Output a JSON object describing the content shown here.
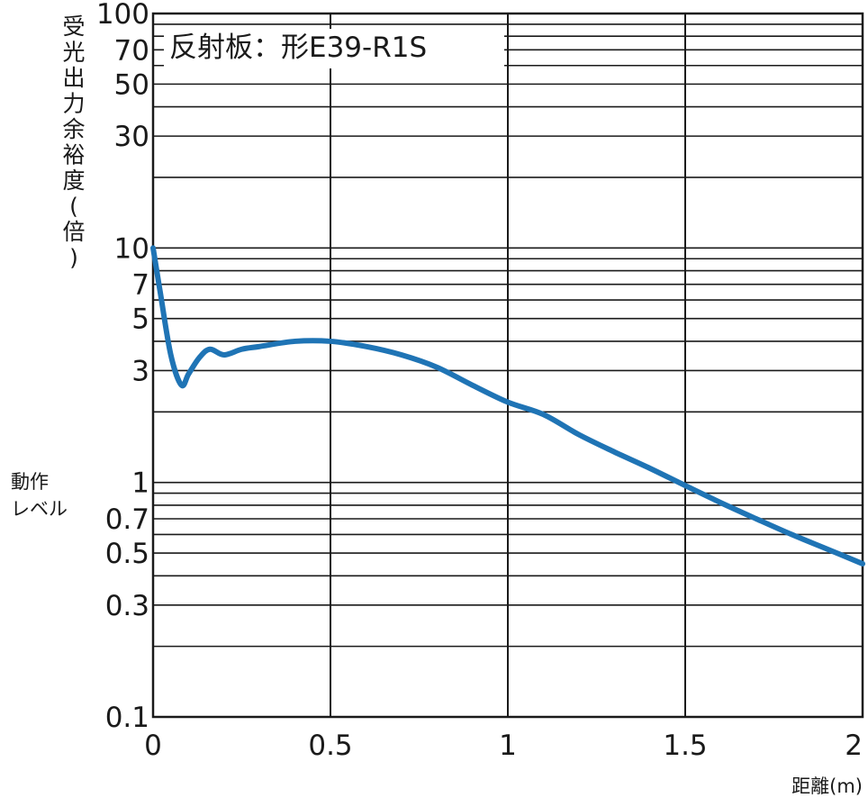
{
  "chart_data": {
    "type": "line",
    "title": "反射板：形E39-R1S",
    "xlabel": "距離(m)",
    "ylabel": "受光出力余裕度(倍)",
    "ylabel_chars": [
      "受",
      "光",
      "出",
      "力",
      "余",
      "裕",
      "度",
      "(",
      "倍",
      ")"
    ],
    "annotation": "動作レベル",
    "annotation_lines": [
      "動作",
      "レベル"
    ],
    "x_scale": "linear",
    "y_scale": "log",
    "xlim": [
      0,
      2
    ],
    "ylim": [
      0.1,
      100
    ],
    "x_ticks": [
      0,
      0.5,
      1,
      1.5,
      2
    ],
    "x_tick_labels": [
      "0",
      "0.5",
      "1",
      "1.5",
      "2"
    ],
    "y_ticks": [
      0.1,
      0.3,
      0.5,
      0.7,
      1,
      3,
      5,
      7,
      10,
      30,
      50,
      70,
      100
    ],
    "y_tick_labels": [
      "0.1",
      "0.3",
      "0.5",
      "0.7",
      "1",
      "3",
      "5",
      "7",
      "10",
      "30",
      "50",
      "70",
      "100"
    ],
    "grid": true,
    "line_color": "#1f74b5",
    "series": [
      {
        "x": [
          0,
          0.02,
          0.05,
          0.08,
          0.1,
          0.13,
          0.16,
          0.2,
          0.25,
          0.3,
          0.4,
          0.5,
          0.6,
          0.7,
          0.8,
          0.9,
          1.0,
          1.1,
          1.2,
          1.3,
          1.4,
          1.5,
          1.6,
          1.7,
          1.8,
          1.9,
          2.0
        ],
        "y": [
          10,
          6.5,
          3.5,
          2.6,
          2.9,
          3.4,
          3.7,
          3.5,
          3.7,
          3.8,
          4.0,
          4.0,
          3.8,
          3.5,
          3.1,
          2.6,
          2.2,
          1.95,
          1.6,
          1.35,
          1.15,
          0.97,
          0.82,
          0.7,
          0.6,
          0.52,
          0.45
        ]
      }
    ]
  }
}
